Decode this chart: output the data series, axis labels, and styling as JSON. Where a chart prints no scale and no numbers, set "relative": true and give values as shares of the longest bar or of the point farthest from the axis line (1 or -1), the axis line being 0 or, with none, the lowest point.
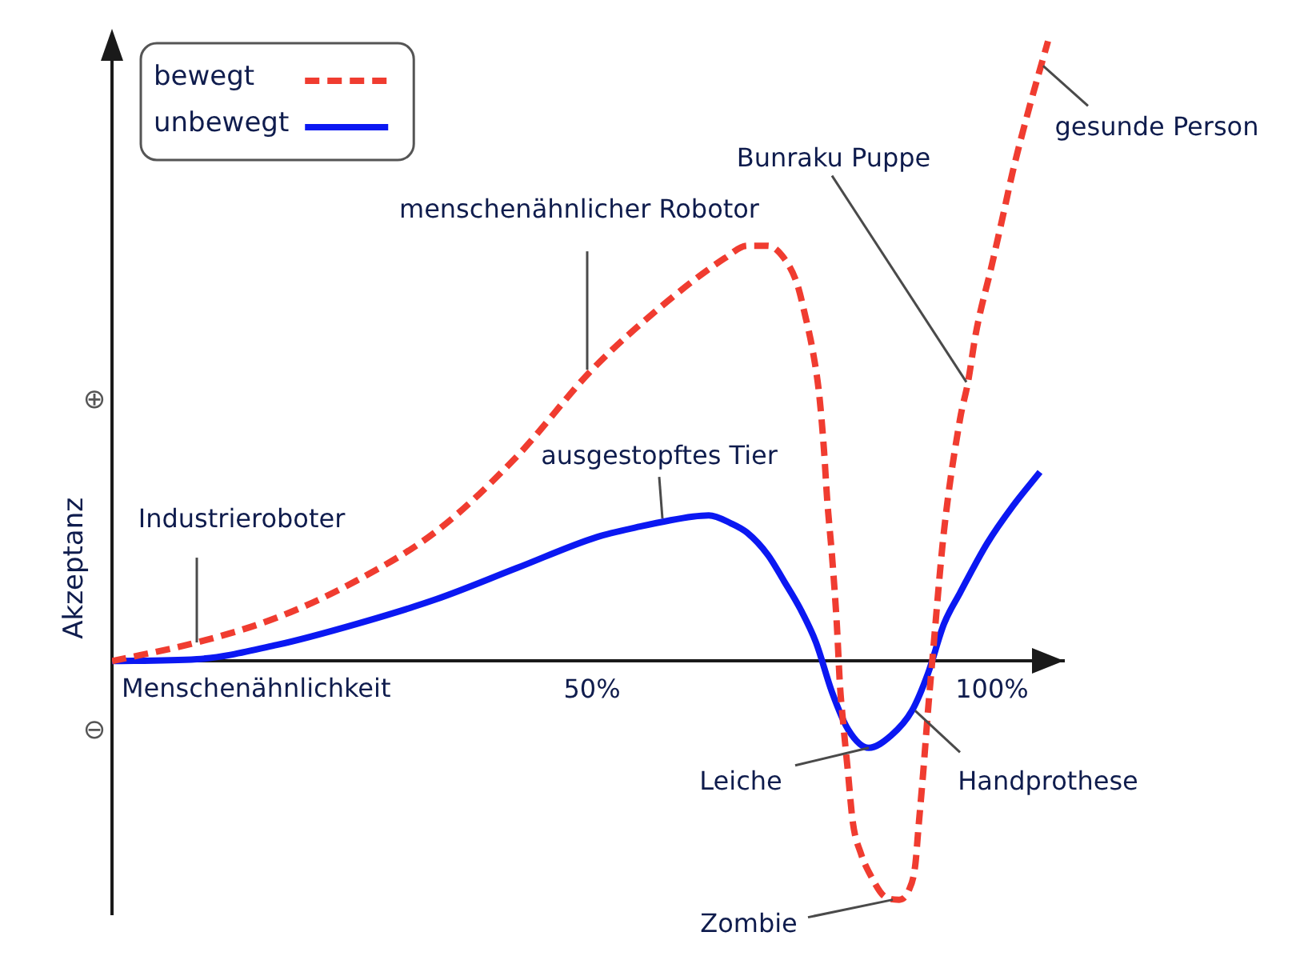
{
  "chart_data": {
    "type": "line",
    "xlabel": "Menschenähnlichkeit",
    "ylabel": "Akzeptanz",
    "relative": true,
    "xlim": [
      -10,
      109
    ],
    "xticks": [
      {
        "value": 50,
        "label": "50%"
      },
      {
        "value": 100,
        "label": "100%"
      }
    ],
    "tick_labels": "x",
    "legend": "top left",
    "series": [
      {
        "name": "bewegt",
        "color": "#f03c30",
        "line_style": "dashed",
        "x": [
          -10,
          0.6,
          10.6,
          20.6,
          30.6,
          40.6,
          50,
          59.4,
          66.6,
          69.4,
          72,
          74,
          75.6,
          76.6,
          77.6,
          78.4,
          79,
          79.4,
          80,
          80.6,
          81,
          81.4,
          82,
          82.6,
          83.6,
          85,
          86.6,
          88.4,
          89.6,
          90.4,
          90.8,
          91.4,
          92,
          92.6,
          94,
          96,
          97,
          98,
          100,
          101.4,
          102.6,
          104.6,
          107
        ],
        "values": [
          0,
          0.03,
          0.07,
          0.13,
          0.21,
          0.33,
          0.47,
          0.58,
          0.65,
          0.67,
          0.67,
          0.65,
          0.61,
          0.56,
          0.5,
          0.43,
          0.34,
          0.26,
          0.17,
          0.06,
          -0.04,
          -0.1,
          -0.18,
          -0.26,
          -0.31,
          -0.35,
          -0.38,
          -0.385,
          -0.37,
          -0.33,
          -0.27,
          -0.18,
          -0.08,
          0.01,
          0.21,
          0.39,
          0.45,
          0.53,
          0.64,
          0.72,
          0.79,
          0.89,
          1
        ]
      },
      {
        "name": "unbewegt",
        "color": "#0b18f2",
        "line_style": "solid",
        "x": [
          -10,
          0.6,
          10.6,
          20.6,
          30.6,
          40.6,
          50.6,
          56,
          62.6,
          64.6,
          67.4,
          69.4,
          72,
          74,
          76,
          78,
          80,
          82,
          84.6,
          87.4,
          90,
          92,
          94,
          96,
          99.4,
          102.6,
          106
        ],
        "values": [
          0,
          0.003,
          0.026,
          0.06,
          0.1,
          0.15,
          0.2,
          0.217,
          0.233,
          0.235,
          0.222,
          0.207,
          0.171,
          0.129,
          0.085,
          0.03,
          -0.05,
          -0.11,
          -0.14,
          -0.12,
          -0.08,
          -0.02,
          0.06,
          0.11,
          0.19,
          0.25,
          0.305
        ]
      }
    ],
    "annotations": [
      "⊕",
      "⊖",
      {
        "text": "Industrieroboter",
        "x": 0.6,
        "y": 0.03
      },
      {
        "text": "menschenähnlicher Robotor",
        "x": 49.4,
        "y": 0.47
      },
      {
        "text": "ausgestopftes Tier",
        "x": 58.8,
        "y": 0.23
      },
      {
        "text": "Bunraku Puppe",
        "x": 96.8,
        "y": 0.45
      },
      {
        "text": "gesunde Person",
        "x": 106.4,
        "y": 0.96
      },
      {
        "text": "Leiche",
        "x": 84.6,
        "y": -0.14
      },
      {
        "text": "Handprothese",
        "x": 90.4,
        "y": -0.08
      },
      {
        "text": "Zombie",
        "x": 87.6,
        "y": -0.385
      }
    ]
  }
}
